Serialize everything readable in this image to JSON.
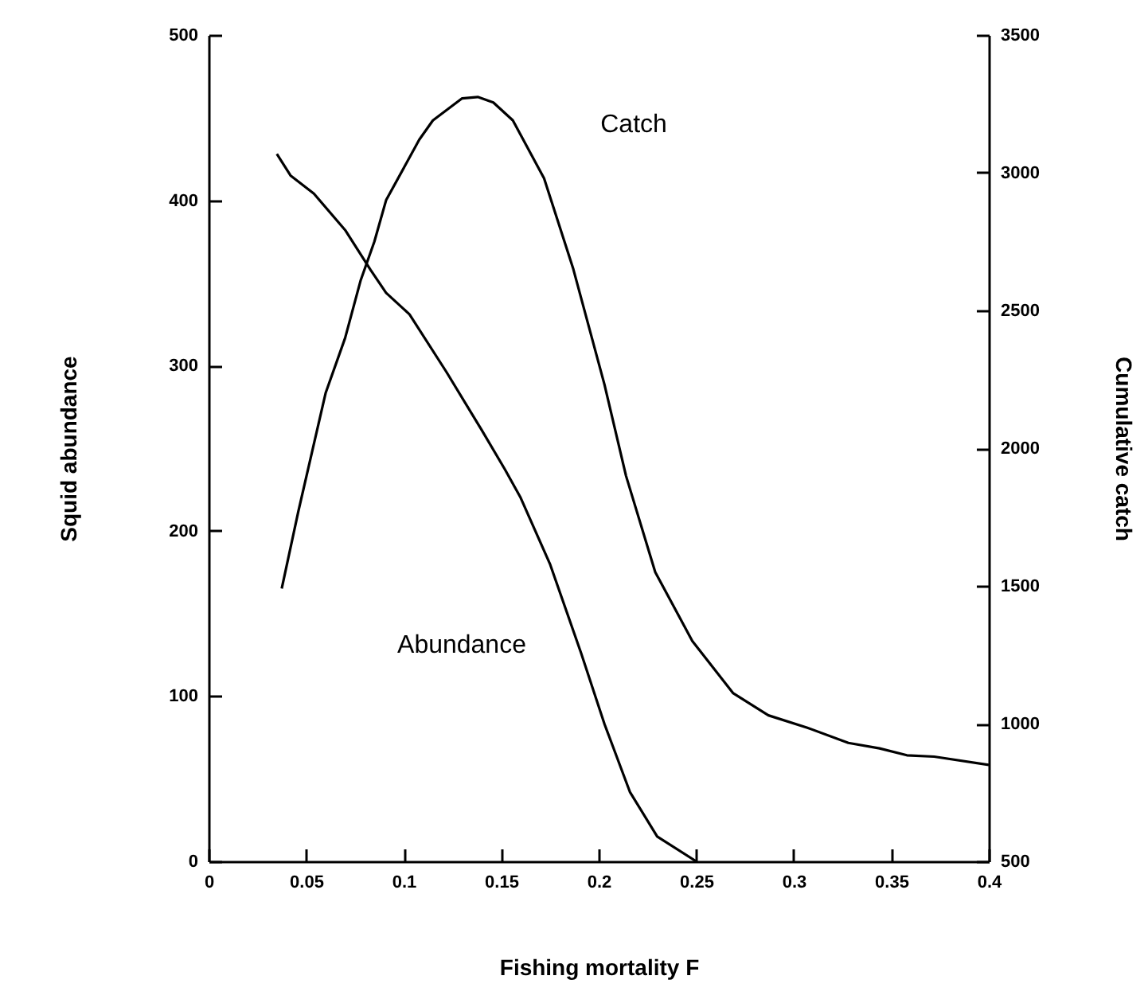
{
  "chart_data": {
    "type": "line",
    "xlabel": "Fishing mortality  F",
    "ylabel": "Squid abundance",
    "y2label": "Cumulative catch",
    "xlim": [
      0,
      0.4
    ],
    "xticks": [
      0,
      0.05,
      0.1,
      0.15,
      0.2,
      0.25,
      0.3,
      0.35,
      0.4
    ],
    "ylim": [
      0,
      500
    ],
    "yticks": [
      0,
      100,
      200,
      300,
      400,
      500
    ],
    "y2lim": [
      500,
      3500
    ],
    "y2ticks": [
      500,
      1000,
      1500,
      2000,
      2500,
      3000,
      3500
    ],
    "grid": false,
    "marker": "none",
    "line_style": "solid",
    "series": [
      {
        "name": "Abundance",
        "color": "#000000",
        "x": [
          0.035,
          0.042,
          0.054,
          0.07,
          0.083,
          0.091,
          0.103,
          0.122,
          0.14,
          0.152,
          0.16,
          0.175,
          0.191,
          0.203,
          0.216,
          0.23,
          0.25
        ],
        "values": [
          428,
          415,
          404,
          382,
          358,
          344,
          331,
          296,
          261,
          237,
          220,
          180,
          126,
          83,
          42,
          15,
          0
        ]
      },
      {
        "name": "Catch",
        "color": "#000000",
        "axis": "y2",
        "x": [
          0.0375,
          0.046,
          0.06,
          0.07,
          0.078,
          0.085,
          0.091,
          0.108,
          0.115,
          0.13,
          0.138,
          0.146,
          0.156,
          0.172,
          0.187,
          0.203,
          0.214,
          0.229,
          0.248,
          0.269,
          0.287,
          0.307,
          0.328,
          0.344,
          0.358,
          0.372,
          0.4
        ],
        "values": [
          1490,
          1770,
          2200,
          2400,
          2610,
          2750,
          2900,
          3120,
          3190,
          3270,
          3275,
          3255,
          3190,
          2980,
          2650,
          2230,
          1900,
          1550,
          1300,
          1110,
          1030,
          985,
          930,
          910,
          885,
          880,
          850
        ]
      }
    ]
  }
}
